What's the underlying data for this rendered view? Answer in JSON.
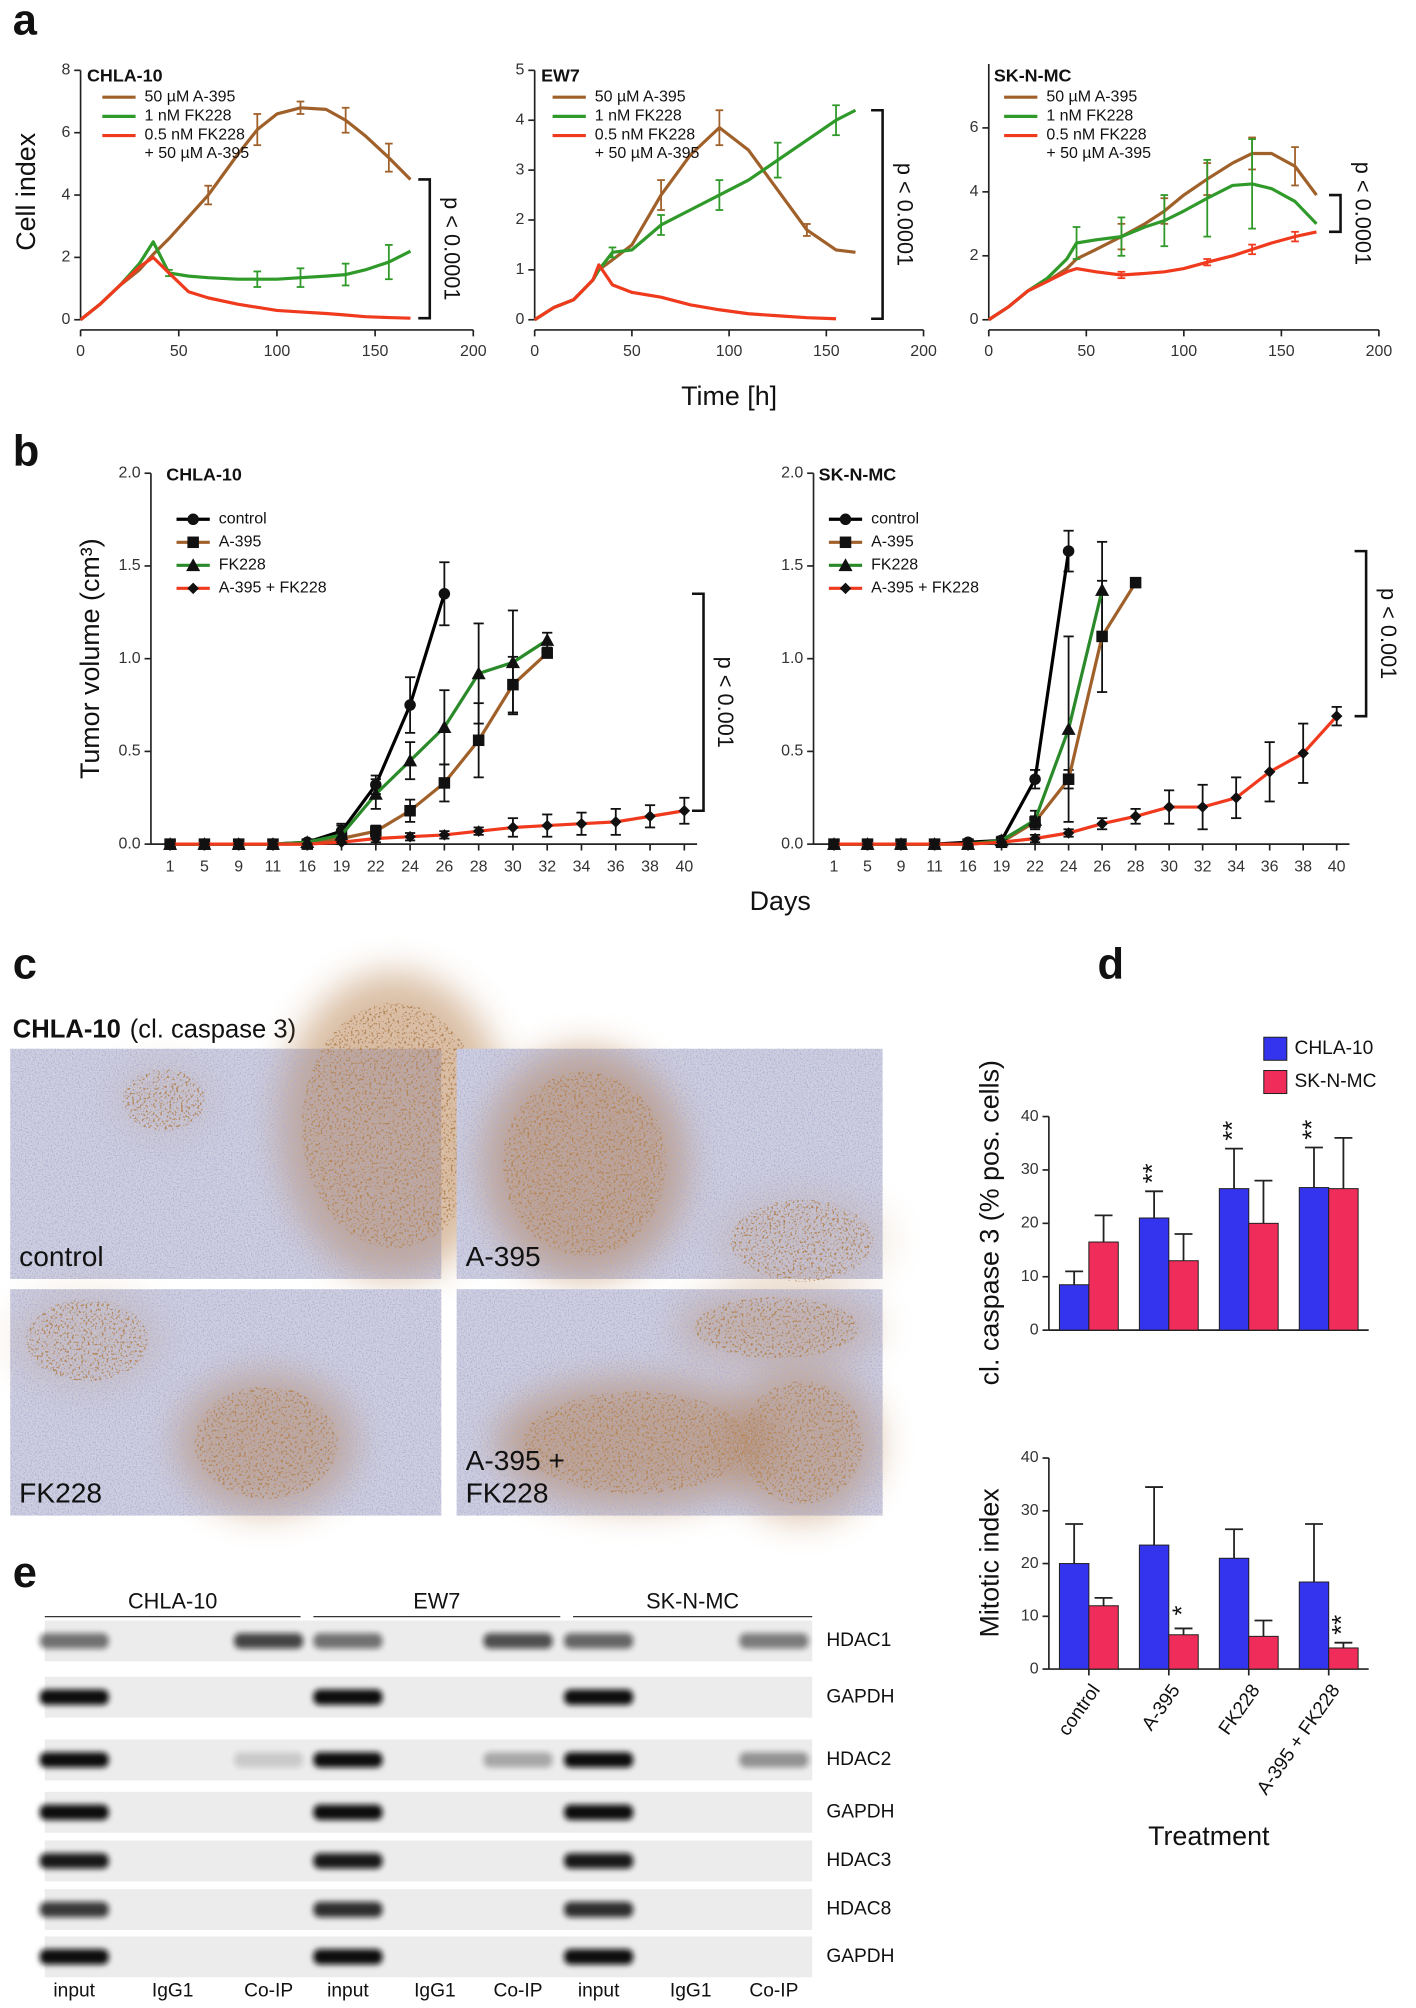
{
  "panel_labels": [
    "a",
    "b",
    "c",
    "d",
    "e"
  ],
  "chart_data": [
    {
      "type": "line",
      "title": "CHLA-10",
      "ylabel": "Cell index",
      "x": [
        0,
        10,
        20,
        30,
        37,
        45,
        55,
        65,
        80,
        90,
        100,
        112,
        125,
        135,
        145,
        157,
        168
      ],
      "series": [
        {
          "name": "50 µM A-395",
          "color": "#a0602a",
          "values": [
            0,
            0.5,
            1.1,
            1.6,
            2.1,
            2.6,
            3.3,
            4.0,
            5.3,
            6.1,
            6.6,
            6.8,
            6.75,
            6.4,
            5.9,
            5.2,
            4.5
          ],
          "errors": [
            null,
            null,
            null,
            null,
            null,
            null,
            null,
            0.3,
            null,
            0.5,
            null,
            0.2,
            null,
            0.4,
            null,
            0.45,
            null
          ]
        },
        {
          "name": "1 nM FK228",
          "color": "#2f9a2a",
          "values": [
            0,
            0.5,
            1.1,
            1.8,
            2.5,
            1.5,
            1.4,
            1.35,
            1.3,
            1.3,
            1.3,
            1.35,
            1.4,
            1.45,
            1.6,
            1.85,
            2.2
          ],
          "errors": [
            null,
            null,
            null,
            null,
            null,
            0.1,
            null,
            null,
            null,
            0.25,
            null,
            0.3,
            null,
            0.35,
            null,
            0.55,
            null
          ]
        },
        {
          "name": "0.5 nM FK228\n+ 50 µM A-395",
          "color": "#f03a1e",
          "values": [
            0,
            0.5,
            1.1,
            1.7,
            2.0,
            1.5,
            0.9,
            0.7,
            0.5,
            0.4,
            0.3,
            0.25,
            0.2,
            0.15,
            0.1,
            0.07,
            0.05
          ]
        }
      ],
      "xlim": [
        0,
        200
      ],
      "xticks": [
        0,
        50,
        100,
        150,
        200
      ],
      "ylim": [
        0,
        8
      ],
      "yticks": [
        0,
        2,
        4,
        6,
        8
      ],
      "annotation": "p < 0.0001"
    },
    {
      "type": "line",
      "title": "EW7",
      "xlabel": "Time [h]",
      "x": [
        0,
        10,
        20,
        30,
        33,
        40,
        50,
        65,
        80,
        95,
        110,
        125,
        140,
        155,
        165
      ],
      "series": [
        {
          "name": "50 µM A-395",
          "color": "#a0602a",
          "values": [
            0,
            0.25,
            0.4,
            0.8,
            1.0,
            1.2,
            1.5,
            2.5,
            3.3,
            3.85,
            3.4,
            2.6,
            1.8,
            1.4,
            1.35
          ],
          "errors": [
            null,
            null,
            null,
            null,
            null,
            null,
            null,
            0.3,
            null,
            0.35,
            null,
            null,
            0.12,
            null,
            null
          ]
        },
        {
          "name": "1 nM FK228",
          "color": "#2f9a2a",
          "values": [
            0,
            0.25,
            0.4,
            0.8,
            1.0,
            1.35,
            1.4,
            1.9,
            2.2,
            2.5,
            2.8,
            3.2,
            3.6,
            4.0,
            4.2
          ],
          "errors": [
            null,
            null,
            null,
            null,
            null,
            0.1,
            null,
            0.2,
            null,
            0.3,
            null,
            0.35,
            null,
            0.3,
            null
          ]
        },
        {
          "name": "0.5 nM FK228\n+ 50 µM A-395",
          "color": "#f03a1e",
          "values": [
            0,
            0.25,
            0.4,
            0.8,
            1.1,
            0.7,
            0.55,
            0.45,
            0.3,
            0.2,
            0.12,
            0.08,
            0.04,
            0.02,
            null
          ]
        }
      ],
      "xlim": [
        0,
        200
      ],
      "xticks": [
        0,
        50,
        100,
        150,
        200
      ],
      "ylim": [
        0,
        5
      ],
      "yticks": [
        0,
        1,
        2,
        3,
        4,
        5
      ],
      "annotation": "p < 0.0001"
    },
    {
      "type": "line",
      "title": "SK-N-MC",
      "x": [
        0,
        10,
        20,
        30,
        40,
        45,
        55,
        68,
        80,
        90,
        100,
        112,
        125,
        135,
        145,
        157,
        168
      ],
      "series": [
        {
          "name": "50 µM A-395",
          "color": "#a0602a",
          "values": [
            0,
            0.4,
            0.9,
            1.2,
            1.6,
            1.9,
            2.2,
            2.6,
            3.0,
            3.4,
            3.9,
            4.4,
            4.9,
            5.2,
            5.2,
            4.8,
            3.9
          ],
          "errors": [
            null,
            null,
            null,
            null,
            null,
            null,
            null,
            0.4,
            null,
            0.4,
            null,
            0.5,
            null,
            0.5,
            null,
            0.6,
            null
          ]
        },
        {
          "name": "1 nM FK228",
          "color": "#2f9a2a",
          "values": [
            0,
            0.4,
            0.9,
            1.3,
            1.9,
            2.4,
            2.5,
            2.6,
            2.9,
            3.1,
            3.4,
            3.8,
            4.2,
            4.25,
            4.1,
            3.7,
            3.0
          ],
          "errors": [
            null,
            null,
            null,
            null,
            null,
            0.5,
            null,
            0.6,
            null,
            0.8,
            null,
            1.2,
            null,
            1.4,
            null,
            null,
            null
          ]
        },
        {
          "name": "0.5 nM FK228\n+ 50 µM A-395",
          "color": "#f03a1e",
          "values": [
            0,
            0.4,
            0.9,
            1.2,
            1.5,
            1.6,
            1.5,
            1.4,
            1.45,
            1.5,
            1.6,
            1.8,
            2.0,
            2.2,
            2.4,
            2.6,
            2.75
          ],
          "errors": [
            null,
            null,
            null,
            null,
            null,
            null,
            null,
            0.1,
            null,
            null,
            null,
            0.1,
            null,
            0.15,
            null,
            0.15,
            null
          ]
        }
      ],
      "xlim": [
        0,
        200
      ],
      "xticks": [
        0,
        50,
        100,
        150,
        200
      ],
      "ylim": [
        0,
        8
      ],
      "yticks": [
        0,
        2,
        4,
        6
      ],
      "annotation": "p < 0.0001"
    },
    {
      "type": "line-markers",
      "title": "CHLA-10",
      "ylabel": "Tumor volume (cm³)",
      "xlabel": "Days",
      "categories": [
        "1",
        "5",
        "9",
        "11",
        "16",
        "19",
        "22",
        "24",
        "26",
        "28",
        "30",
        "32",
        "34",
        "36",
        "38",
        "40"
      ],
      "series": [
        {
          "name": "control",
          "color": "#000000",
          "marker": "circle",
          "values": [
            0,
            0,
            0,
            0,
            0.01,
            0.07,
            0.32,
            0.75,
            1.35,
            null,
            null,
            null,
            null,
            null,
            null,
            null
          ],
          "errors": [
            0,
            0,
            0,
            0,
            0.01,
            0.04,
            0.05,
            0.15,
            0.17,
            null,
            null,
            null,
            null,
            null,
            null,
            null
          ]
        },
        {
          "name": "A-395",
          "color": "#a0602a",
          "marker": "square",
          "values": [
            0,
            0,
            0,
            0,
            0,
            0.03,
            0.07,
            0.18,
            0.33,
            0.56,
            0.86,
            1.03,
            null,
            null,
            null,
            null
          ],
          "errors": [
            0,
            0,
            0,
            0,
            0,
            0.02,
            0.03,
            0.06,
            0.1,
            0.2,
            0.15,
            0.02,
            null,
            null,
            null,
            null
          ]
        },
        {
          "name": "FK228",
          "color": "#2a8a2a",
          "marker": "triangle",
          "values": [
            0,
            0,
            0,
            0,
            0.01,
            0.05,
            0.27,
            0.45,
            0.63,
            0.92,
            0.98,
            1.1,
            null,
            null,
            null,
            null
          ],
          "errors": [
            0,
            0,
            0,
            0,
            0.01,
            0.05,
            0.08,
            0.1,
            0.2,
            0.27,
            0.28,
            0.04,
            null,
            null,
            null,
            null
          ]
        },
        {
          "name": "A-395 + FK228",
          "color": "#f03a1e",
          "marker": "diamond",
          "values": [
            0,
            0,
            0,
            0,
            0,
            0.01,
            0.03,
            0.04,
            0.05,
            0.07,
            0.09,
            0.1,
            0.11,
            0.12,
            0.15,
            0.18
          ],
          "errors": [
            0,
            0,
            0,
            0,
            0,
            0.01,
            0.02,
            0.02,
            0.02,
            0.02,
            0.05,
            0.06,
            0.06,
            0.07,
            0.06,
            0.07
          ]
        }
      ],
      "ylim": [
        0,
        2
      ],
      "yticks": [
        {
          "value": 0,
          "label": "0.0"
        },
        {
          "value": 0.5,
          "label": "0.5"
        },
        {
          "value": 1,
          "label": "1.0"
        },
        {
          "value": 1.5,
          "label": "1.5"
        },
        {
          "value": 2,
          "label": "2.0"
        }
      ],
      "annotation": "p < 0.001"
    },
    {
      "type": "line-markers",
      "title": "SK-N-MC",
      "categories": [
        "1",
        "5",
        "9",
        "11",
        "16",
        "19",
        "22",
        "24",
        "26",
        "28",
        "30",
        "32",
        "34",
        "36",
        "38",
        "40"
      ],
      "series": [
        {
          "name": "control",
          "color": "#000000",
          "marker": "circle",
          "values": [
            0,
            0,
            0,
            0,
            0.01,
            0.02,
            0.35,
            1.58,
            null,
            null,
            null,
            null,
            null,
            null,
            null,
            null
          ],
          "errors": [
            0,
            0,
            0,
            0,
            0.01,
            0.02,
            0.05,
            0.11,
            null,
            null,
            null,
            null,
            null,
            null,
            null,
            null
          ]
        },
        {
          "name": "A-395",
          "color": "#a0602a",
          "marker": "square",
          "values": [
            0,
            0,
            0,
            0,
            0,
            0.01,
            0.12,
            0.35,
            1.12,
            1.41,
            null,
            null,
            null,
            null,
            null,
            null
          ],
          "errors": [
            0,
            0,
            0,
            0,
            0,
            0.01,
            0.03,
            0.05,
            0.3,
            null,
            null,
            null,
            null,
            null,
            null,
            null
          ]
        },
        {
          "name": "FK228",
          "color": "#2a8a2a",
          "marker": "triangle",
          "values": [
            0,
            0,
            0,
            0,
            0,
            0.02,
            0.13,
            0.62,
            1.37,
            null,
            null,
            null,
            null,
            null,
            null,
            null
          ],
          "errors": [
            0,
            0,
            0,
            0,
            0,
            0.02,
            0.05,
            0.5,
            0.26,
            null,
            null,
            null,
            null,
            null,
            null,
            null
          ]
        },
        {
          "name": "A-395 + FK228",
          "color": "#f03a1e",
          "marker": "diamond",
          "values": [
            0,
            0,
            0,
            0,
            0,
            0.01,
            0.03,
            0.06,
            0.11,
            0.15,
            0.2,
            0.2,
            0.25,
            0.39,
            0.49,
            0.69
          ],
          "errors": [
            0,
            0,
            0,
            0,
            0,
            0.01,
            0.02,
            0.02,
            0.03,
            0.04,
            0.09,
            0.12,
            0.11,
            0.16,
            0.16,
            0.05
          ]
        }
      ],
      "ylim": [
        0,
        2
      ],
      "yticks": [
        {
          "value": 0,
          "label": "0.0"
        },
        {
          "value": 0.5,
          "label": "0.5"
        },
        {
          "value": 1,
          "label": "1.0"
        },
        {
          "value": 1.5,
          "label": "1.5"
        },
        {
          "value": 2,
          "label": "2.0"
        }
      ],
      "annotation": "p < 0.001"
    },
    {
      "type": "bar",
      "ylabel": "cl. caspase 3 (% pos. cells)",
      "series": [
        {
          "name": "CHLA-10",
          "color": "#3434ee",
          "values": [
            8.5,
            21,
            26.5,
            26.7
          ],
          "errors": [
            2.5,
            5,
            7.5,
            7.5
          ],
          "significance": [
            null,
            "**",
            "**",
            "**"
          ]
        },
        {
          "name": "SK-N-MC",
          "color": "#f02d5a",
          "values": [
            16.5,
            13,
            20,
            26.5
          ],
          "errors": [
            5,
            5,
            8,
            9.5
          ]
        }
      ],
      "ylim": [
        0,
        40
      ],
      "yticks": [
        0,
        10,
        20,
        30,
        40
      ]
    },
    {
      "type": "bar",
      "ylabel": "Mitotic index",
      "xlabel": "Treatment",
      "categories": [
        "control",
        "A-395",
        "FK228",
        "A-395 + FK228"
      ],
      "series": [
        {
          "color": "#3434ee",
          "values": [
            20,
            23.5,
            21,
            16.5
          ],
          "errors": [
            7.5,
            11,
            5.5,
            11
          ]
        },
        {
          "color": "#f02d5a",
          "values": [
            12,
            6.5,
            6.2,
            4
          ],
          "errors": [
            1.5,
            1.2,
            3,
            1
          ],
          "significance": [
            null,
            "*",
            null,
            "**"
          ]
        }
      ],
      "ylim": [
        0,
        40
      ],
      "yticks": [
        0,
        10,
        20,
        30,
        40
      ]
    }
  ],
  "ihc": {
    "title": "CHLA-10",
    "subtitle": "(cl. caspase 3)",
    "images": [
      "control",
      "A-395",
      "FK228",
      "A-395 +\nFK228"
    ]
  },
  "blot": {
    "groups": [
      "CHLA-10",
      "EW7",
      "SK-N-MC"
    ],
    "lanes": [
      "input",
      "IgG1",
      "Co-IP",
      "input",
      "IgG1",
      "Co-IP",
      "input",
      "IgG1",
      "Co-IP"
    ],
    "rows": [
      "HDAC1",
      "GAPDH",
      "HDAC2",
      "GAPDH",
      "HDAC3",
      "HDAC8",
      "GAPDH"
    ]
  }
}
